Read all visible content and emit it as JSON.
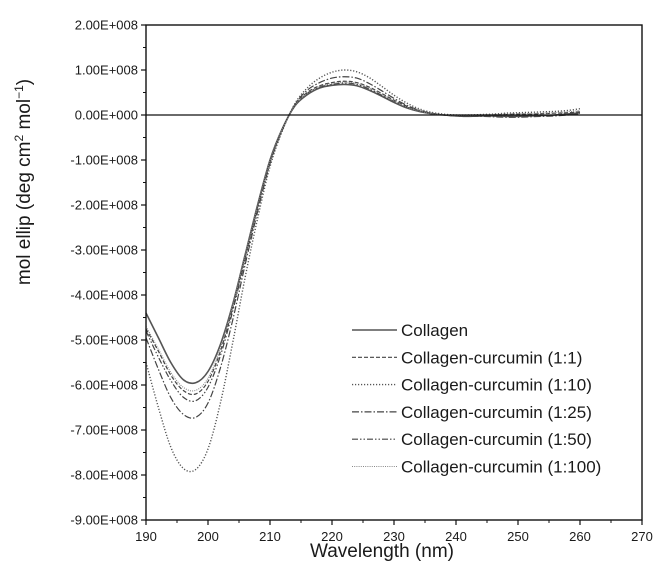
{
  "chart_data": {
    "type": "line",
    "xlabel": "Wavelength (nm)",
    "ylabel_parts": {
      "main": "mol ellip (deg cm",
      "sup1": "2",
      "mid": " mol",
      "sup2": "−1",
      "end": ")"
    },
    "xlim": [
      190,
      270
    ],
    "ylim": [
      -900000000,
      200000000
    ],
    "x_ticks": [
      190,
      200,
      210,
      220,
      230,
      240,
      250,
      260,
      270
    ],
    "x_tick_labels": [
      "190",
      "200",
      "210",
      "220",
      "230",
      "240",
      "250",
      "260",
      "270"
    ],
    "y_ticks": [
      200000000,
      100000000,
      0,
      -100000000,
      -200000000,
      -300000000,
      -400000000,
      -500000000,
      -600000000,
      -700000000,
      -800000000,
      -900000000
    ],
    "y_tick_labels": [
      "2.00E+008",
      "1.00E+008",
      "0.00E+000",
      "-1.00E+008",
      "-2.00E+008",
      "-3.00E+008",
      "-4.00E+008",
      "-5.00E+008",
      "-6.00E+008",
      "-7.00E+008",
      "-8.00E+008",
      "-9.00E+008"
    ],
    "zero_line": true,
    "grid": false,
    "legend_position": "bottom-right",
    "x": [
      190,
      192,
      194,
      196,
      198,
      200,
      202,
      204,
      206,
      208,
      210,
      212,
      214,
      216,
      218,
      220,
      222,
      224,
      226,
      228,
      230,
      232,
      234,
      236,
      238,
      240,
      242,
      244,
      246,
      248,
      250,
      252,
      254,
      256,
      258,
      260
    ],
    "series": [
      {
        "name": "Collagen",
        "dash": "",
        "width": 1.6,
        "color": "#555555",
        "values": [
          -440000000,
          -495000000,
          -550000000,
          -588000000,
          -595000000,
          -570000000,
          -510000000,
          -420000000,
          -310000000,
          -200000000,
          -100000000,
          -30000000,
          20000000,
          45000000,
          60000000,
          66000000,
          68000000,
          65000000,
          55000000,
          42000000,
          28000000,
          16000000,
          8000000,
          3000000,
          0,
          -2000000,
          -3000000,
          -2000000,
          -2000000,
          -3000000,
          -3000000,
          -2000000,
          -1000000,
          0,
          2000000,
          5000000
        ]
      },
      {
        "name": "Collagen-curcumin (1:1)",
        "dash": "4,2",
        "width": 1.2,
        "color": "#444444",
        "values": [
          -475000000,
          -525000000,
          -578000000,
          -612000000,
          -620000000,
          -592000000,
          -525000000,
          -428000000,
          -315000000,
          -205000000,
          -103000000,
          -32000000,
          22000000,
          50000000,
          65000000,
          72000000,
          75000000,
          72000000,
          62000000,
          48000000,
          33000000,
          20000000,
          10000000,
          4000000,
          0,
          -2000000,
          -2000000,
          -1000000,
          0,
          1000000,
          2000000,
          2000000,
          3000000,
          4000000,
          5000000,
          7000000
        ]
      },
      {
        "name": "Collagen-curcumin (1:10)",
        "dash": "1.2,1.8",
        "width": 1.4,
        "color": "#555555",
        "values": [
          -550000000,
          -650000000,
          -738000000,
          -785000000,
          -788000000,
          -742000000,
          -640000000,
          -505000000,
          -360000000,
          -230000000,
          -115000000,
          -35000000,
          25000000,
          60000000,
          82000000,
          95000000,
          100000000,
          96000000,
          83000000,
          64000000,
          44000000,
          27000000,
          14000000,
          6000000,
          2000000,
          0,
          0,
          1000000,
          2000000,
          4000000,
          5000000,
          6000000,
          7000000,
          8000000,
          10000000,
          14000000
        ]
      },
      {
        "name": "Collagen-curcumin (1:25)",
        "dash": "7,2,1.5,2",
        "width": 1.2,
        "color": "#444444",
        "values": [
          -495000000,
          -565000000,
          -628000000,
          -665000000,
          -672000000,
          -640000000,
          -562000000,
          -455000000,
          -332000000,
          -215000000,
          -108000000,
          -33000000,
          23000000,
          55000000,
          72000000,
          82000000,
          85000000,
          82000000,
          70000000,
          54000000,
          37000000,
          22000000,
          11000000,
          4000000,
          0,
          -2000000,
          -3000000,
          -3000000,
          -4000000,
          -5000000,
          -5000000,
          -4000000,
          -3000000,
          -2000000,
          0,
          3000000
        ]
      },
      {
        "name": "Collagen-curcumin (1:50)",
        "dash": "6,2,1.5,2,1.5,2",
        "width": 1.2,
        "color": "#444444",
        "values": [
          -480000000,
          -538000000,
          -590000000,
          -627000000,
          -635000000,
          -605000000,
          -535000000,
          -435000000,
          -320000000,
          -207000000,
          -104000000,
          -31000000,
          21000000,
          48000000,
          62000000,
          68000000,
          71000000,
          68000000,
          58000000,
          44000000,
          30000000,
          18000000,
          9000000,
          3000000,
          0,
          -2000000,
          -3000000,
          -2000000,
          -2000000,
          -3000000,
          -3000000,
          -2000000,
          -1000000,
          0,
          2000000,
          4000000
        ]
      },
      {
        "name": "Collagen-curcumin (1:100)",
        "dash": "1,1.2",
        "width": 1.1,
        "color": "#888888",
        "values": [
          -470000000,
          -520000000,
          -572000000,
          -605000000,
          -612000000,
          -585000000,
          -518000000,
          -423000000,
          -312000000,
          -203000000,
          -102000000,
          -31000000,
          21000000,
          48000000,
          63000000,
          70000000,
          73000000,
          70000000,
          60000000,
          46000000,
          31000000,
          18000000,
          9000000,
          3000000,
          0,
          -1000000,
          -1000000,
          0,
          1000000,
          2000000,
          3000000,
          3000000,
          4000000,
          5000000,
          7000000,
          10000000
        ]
      }
    ]
  }
}
